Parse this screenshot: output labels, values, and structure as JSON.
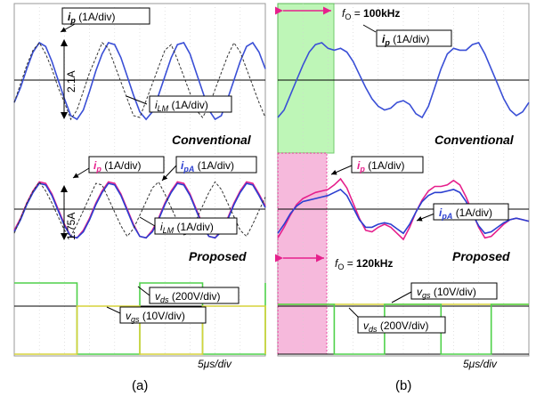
{
  "chart_data": [
    {
      "type": "line",
      "panel": "(a)",
      "x": [
        0,
        0.25,
        0.5,
        0.75,
        1,
        1.25,
        1.5,
        1.75,
        2,
        2.25,
        2.5,
        2.75,
        3,
        3.25,
        3.5,
        3.75,
        4,
        4.25,
        4.5,
        4.75,
        5,
        5.25,
        5.5,
        5.75,
        6,
        6.25,
        6.5,
        6.75,
        7,
        7.25,
        7.5,
        7.75,
        8,
        8.25,
        8.5,
        8.75,
        9,
        9.25,
        9.5,
        9.75,
        10
      ],
      "time_scale": "5μs/div",
      "subplots": [
        {
          "name": "conventional",
          "label": "Conventional",
          "series": [
            {
              "name": "i_p",
              "legend": "(1A/div)",
              "color": "#3a4fd6",
              "values": [
                -0.6,
                -0.2,
                0.3,
                0.75,
                1.0,
                0.9,
                0.5,
                0.0,
                -0.5,
                -0.95,
                -1.05,
                -0.8,
                -0.3,
                0.25,
                0.7,
                1.0,
                0.95,
                0.6,
                0.1,
                -0.4,
                -0.85,
                -1.05,
                -0.85,
                -0.4,
                0.1,
                0.6,
                0.95,
                1.0,
                0.7,
                0.2,
                -0.3,
                -0.8,
                -1.05,
                -0.95,
                -0.5,
                0.0,
                0.5,
                0.9,
                1.0,
                0.75,
                0.3
              ]
            },
            {
              "name": "i_LM",
              "legend": "(1A/div)",
              "color": "#333333",
              "dashed": true,
              "values": [
                -0.6,
                -0.1,
                0.4,
                0.8,
                1.0,
                0.7,
                0.3,
                -0.2,
                -0.6,
                -1.05,
                -0.8,
                -0.3,
                0.2,
                0.6,
                1.0,
                0.85,
                0.4,
                -0.05,
                -0.5,
                -0.95,
                -1.0,
                -0.55,
                -0.1,
                0.35,
                0.8,
                0.95,
                0.55,
                0.1,
                -0.35,
                -0.8,
                -1.0,
                -0.7,
                -0.25,
                0.2,
                0.65,
                1.0,
                0.75,
                0.3,
                -0.15,
                -0.6,
                -1.0
              ]
            }
          ],
          "annotation": "2.1A"
        },
        {
          "name": "proposed",
          "label": "Proposed",
          "series": [
            {
              "name": "i_p",
              "legend": "(1A/div)",
              "color": "#e6208c",
              "values": [
                -0.7,
                -0.3,
                0.2,
                0.6,
                0.9,
                0.85,
                0.5,
                0.0,
                -0.5,
                -0.9,
                -0.95,
                -0.7,
                -0.3,
                0.2,
                0.6,
                0.9,
                0.85,
                0.5,
                0.0,
                -0.5,
                -0.9,
                -0.95,
                -0.7,
                -0.3,
                0.2,
                0.6,
                0.9,
                0.85,
                0.5,
                0.0,
                -0.5,
                -0.9,
                -0.95,
                -0.7,
                -0.3,
                0.2,
                0.6,
                0.9,
                0.85,
                0.5,
                0.1
              ]
            },
            {
              "name": "i_pA",
              "legend": "(1A/div)",
              "color": "#2b3fd0",
              "values": [
                -0.75,
                -0.35,
                0.15,
                0.55,
                0.85,
                0.8,
                0.45,
                -0.05,
                -0.55,
                -0.9,
                -0.95,
                -0.75,
                -0.35,
                0.15,
                0.55,
                0.85,
                0.8,
                0.45,
                -0.05,
                -0.55,
                -0.9,
                -0.95,
                -0.75,
                -0.35,
                0.15,
                0.55,
                0.85,
                0.8,
                0.45,
                -0.05,
                -0.55,
                -0.9,
                -0.95,
                -0.75,
                -0.35,
                0.15,
                0.55,
                0.85,
                0.8,
                0.45,
                0.05
              ]
            },
            {
              "name": "i_LM",
              "legend": "(1A/div)",
              "color": "#333333",
              "dashed": true,
              "values": [
                -0.8,
                -0.3,
                0.2,
                0.6,
                0.9,
                0.6,
                0.2,
                -0.25,
                -0.7,
                -0.9,
                -0.5,
                -0.05,
                0.4,
                0.85,
                0.8,
                0.35,
                -0.1,
                -0.55,
                -0.9,
                -0.65,
                -0.2,
                0.25,
                0.7,
                0.9,
                0.5,
                0.05,
                -0.4,
                -0.85,
                -0.8,
                -0.35,
                0.1,
                0.55,
                0.9,
                0.65,
                0.2,
                -0.25,
                -0.7,
                -0.9,
                -0.5,
                -0.05,
                0.4
              ]
            }
          ],
          "annotation": "1.75A"
        },
        {
          "name": "gate-drain",
          "label": "",
          "series": [
            {
              "name": "v_ds",
              "legend": "(200V/div)",
              "color": "#4fd14a",
              "values": [
                1,
                1,
                1,
                1,
                1,
                1,
                1,
                1,
                1,
                1,
                0,
                0,
                0,
                0,
                0,
                0,
                0,
                0,
                0,
                0,
                1,
                1,
                1,
                1,
                1,
                1,
                1,
                1,
                1,
                1,
                0,
                0,
                0,
                0,
                0,
                0,
                0,
                0,
                0,
                0,
                1
              ]
            },
            {
              "name": "v_gs",
              "legend": "(10V/div)",
              "color": "#d6d23a",
              "values": [
                0,
                0,
                0,
                0,
                0,
                0,
                0,
                0,
                0,
                0,
                1,
                1,
                1,
                1,
                1,
                1,
                1,
                1,
                1,
                1,
                0,
                0,
                0,
                0,
                0,
                0,
                0,
                0,
                0,
                0,
                1,
                1,
                1,
                1,
                1,
                1,
                1,
                1,
                1,
                1,
                0
              ]
            }
          ]
        }
      ]
    },
    {
      "type": "line",
      "panel": "(b)",
      "x": [
        0,
        0.25,
        0.5,
        0.75,
        1,
        1.25,
        1.5,
        1.75,
        2,
        2.25,
        2.5,
        2.75,
        3,
        3.25,
        3.5,
        3.75,
        4,
        4.25,
        4.5,
        4.75,
        5,
        5.25,
        5.5,
        5.75,
        6,
        6.25,
        6.5,
        6.75,
        7,
        7.25,
        7.5,
        7.75,
        8,
        8.25,
        8.5,
        8.75,
        9,
        9.25,
        9.5,
        9.75,
        10
      ],
      "time_scale": "5μs/div",
      "subplots": [
        {
          "name": "conventional",
          "label": "Conventional",
          "frequency_label": "f_O = 100kHz",
          "series": [
            {
              "name": "i_p",
              "legend": "(1A/div)",
              "color": "#3a4fd6",
              "values": [
                -1.0,
                -0.8,
                -0.4,
                0.0,
                0.4,
                0.75,
                0.95,
                1.0,
                0.85,
                0.8,
                0.85,
                0.75,
                0.5,
                0.15,
                -0.2,
                -0.5,
                -0.7,
                -0.8,
                -0.75,
                -0.6,
                -0.55,
                -0.65,
                -0.9,
                -1.0,
                -0.7,
                -0.2,
                0.3,
                0.7,
                0.85,
                0.8,
                0.8,
                0.95,
                1.0,
                0.7,
                0.3,
                -0.1,
                -0.5,
                -0.8,
                -0.95,
                -0.85,
                -0.6
              ]
            }
          ]
        },
        {
          "name": "proposed",
          "label": "Proposed",
          "frequency_label": "f_O = 120kHz",
          "series": [
            {
              "name": "i_p",
              "legend": "(1A/div)",
              "color": "#e6208c",
              "values": [
                -0.95,
                -0.6,
                -0.2,
                0.15,
                0.35,
                0.45,
                0.55,
                0.6,
                0.65,
                0.8,
                1.0,
                0.7,
                0.2,
                -0.3,
                -0.7,
                -0.75,
                -0.6,
                -0.5,
                -0.6,
                -0.8,
                -1.0,
                -0.6,
                -0.1,
                0.3,
                0.6,
                0.75,
                0.75,
                0.8,
                0.95,
                0.8,
                0.4,
                -0.1,
                -0.6,
                -0.95,
                -0.9,
                -0.7,
                -0.5,
                -0.35,
                -0.3,
                -0.35,
                -0.4
              ]
            },
            {
              "name": "i_pA",
              "legend": "(1A/div)",
              "color": "#2b3fd0",
              "values": [
                -0.8,
                -0.5,
                -0.15,
                0.1,
                0.25,
                0.3,
                0.35,
                0.4,
                0.45,
                0.55,
                0.65,
                0.45,
                0.05,
                -0.35,
                -0.6,
                -0.6,
                -0.5,
                -0.45,
                -0.5,
                -0.65,
                -0.8,
                -0.5,
                -0.1,
                0.25,
                0.45,
                0.55,
                0.55,
                0.6,
                0.65,
                0.55,
                0.25,
                -0.15,
                -0.55,
                -0.8,
                -0.75,
                -0.6,
                -0.45,
                -0.35,
                -0.3,
                -0.35,
                -0.4
              ]
            }
          ]
        },
        {
          "name": "gate-drain",
          "label": "",
          "series": [
            {
              "name": "v_gs",
              "legend": "(10V/div)",
              "color": "#d6d23a",
              "values": [
                1,
                1,
                1,
                1,
                1,
                1,
                1,
                1,
                1,
                1,
                1,
                1,
                1,
                1,
                1,
                1,
                1,
                1,
                1,
                1,
                1,
                1,
                1,
                1,
                1,
                1,
                1,
                1,
                1,
                1,
                1,
                1,
                1,
                1,
                1,
                1,
                1,
                1,
                1,
                1,
                1
              ]
            },
            {
              "name": "v_ds",
              "legend": "(200V/div)",
              "color": "#4fd14a",
              "values": [
                1,
                1,
                1,
                1,
                1,
                1,
                1,
                1,
                1,
                0,
                0,
                0,
                0,
                0,
                0,
                0,
                0,
                1,
                1,
                1,
                1,
                1,
                1,
                1,
                1,
                1,
                0,
                0,
                0,
                0,
                0,
                0,
                0,
                0,
                1,
                1,
                1,
                1,
                1,
                1,
                1
              ]
            }
          ]
        }
      ]
    }
  ],
  "labels": {
    "a": {
      "ip": "(1A/div)",
      "ilm_top": "(1A/div)",
      "two_one": "2.1A",
      "conventional": "Conventional",
      "ip_b": "(1A/div)",
      "ipa_b": "(1A/div)",
      "ilm_b": "(1A/div)",
      "one_seven": "1.75A",
      "proposed": "Proposed",
      "vds": "(200V/div)",
      "vgs": "(10V/div)",
      "scale": "5μs/div",
      "caption": "(a)"
    },
    "b": {
      "fo_top": "100kHz",
      "fo_bottom": "120kHz",
      "ip": "(1A/div)",
      "conventional": "Conventional",
      "ip_b": "(1A/div)",
      "ipa_b": "(1A/div)",
      "proposed": "Proposed",
      "vgs": "(10V/div)",
      "vds": "(200V/div)",
      "scale": "5μs/div",
      "caption": "(b)"
    }
  }
}
